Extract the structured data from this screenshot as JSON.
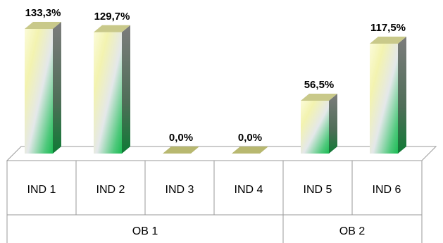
{
  "chart_data": {
    "type": "bar",
    "style": "3d-column",
    "groups": [
      {
        "name": "OB 1",
        "categories": [
          "IND 1",
          "IND 2",
          "IND 3",
          "IND 4"
        ]
      },
      {
        "name": "OB 2",
        "categories": [
          "IND 5",
          "IND 6"
        ]
      }
    ],
    "categories": [
      "IND 1",
      "IND 2",
      "IND 3",
      "IND 4",
      "IND 5",
      "IND 6"
    ],
    "values": [
      133.3,
      129.7,
      0.0,
      0.0,
      56.5,
      117.5
    ],
    "data_labels": [
      "133,3%",
      "129,7%",
      "0,0%",
      "0,0%",
      "56,5%",
      "117,5%"
    ],
    "ylim": [
      0,
      133.3
    ],
    "grid": false,
    "legend": "none",
    "colors": {
      "bar_top": "#f2f2a6",
      "bar_light": "#fbfbd9",
      "bar_mid": "#e4e8ea",
      "bar_green": "#1dbb55",
      "bar_side": "#0f7a35",
      "bar_top_face": "#c9c98a",
      "axis_line": "#9a9a9a"
    }
  }
}
